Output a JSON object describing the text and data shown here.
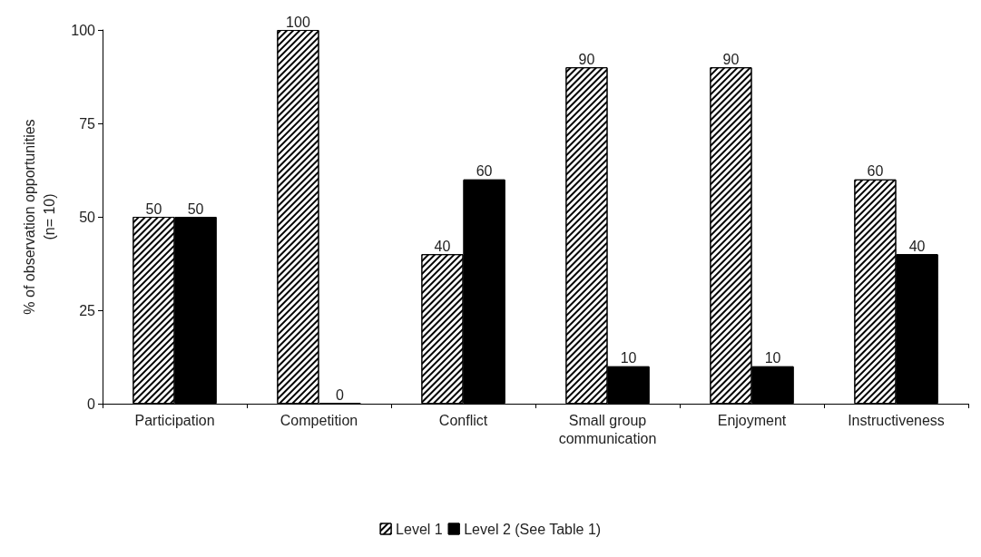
{
  "chart_data": {
    "type": "bar",
    "ylabel": "% of observation opportunities\n(n= 10)",
    "categories": [
      "Participation",
      "Competition",
      "Conflict",
      "Small group\ncommunication",
      "Enjoyment",
      "Instructiveness"
    ],
    "series": [
      {
        "name": "Level 1",
        "color": "#ffffff",
        "values": [
          50,
          100,
          40,
          90,
          90,
          60
        ]
      },
      {
        "name": "Level 2 (See Table 1)",
        "color": "#000000",
        "values": [
          50,
          0,
          60,
          10,
          10,
          40
        ]
      }
    ],
    "ylim": [
      0,
      100
    ],
    "yticks": [
      0,
      25,
      50,
      75,
      100
    ],
    "grid": false,
    "legend": "bottom",
    "data_labels": true
  }
}
